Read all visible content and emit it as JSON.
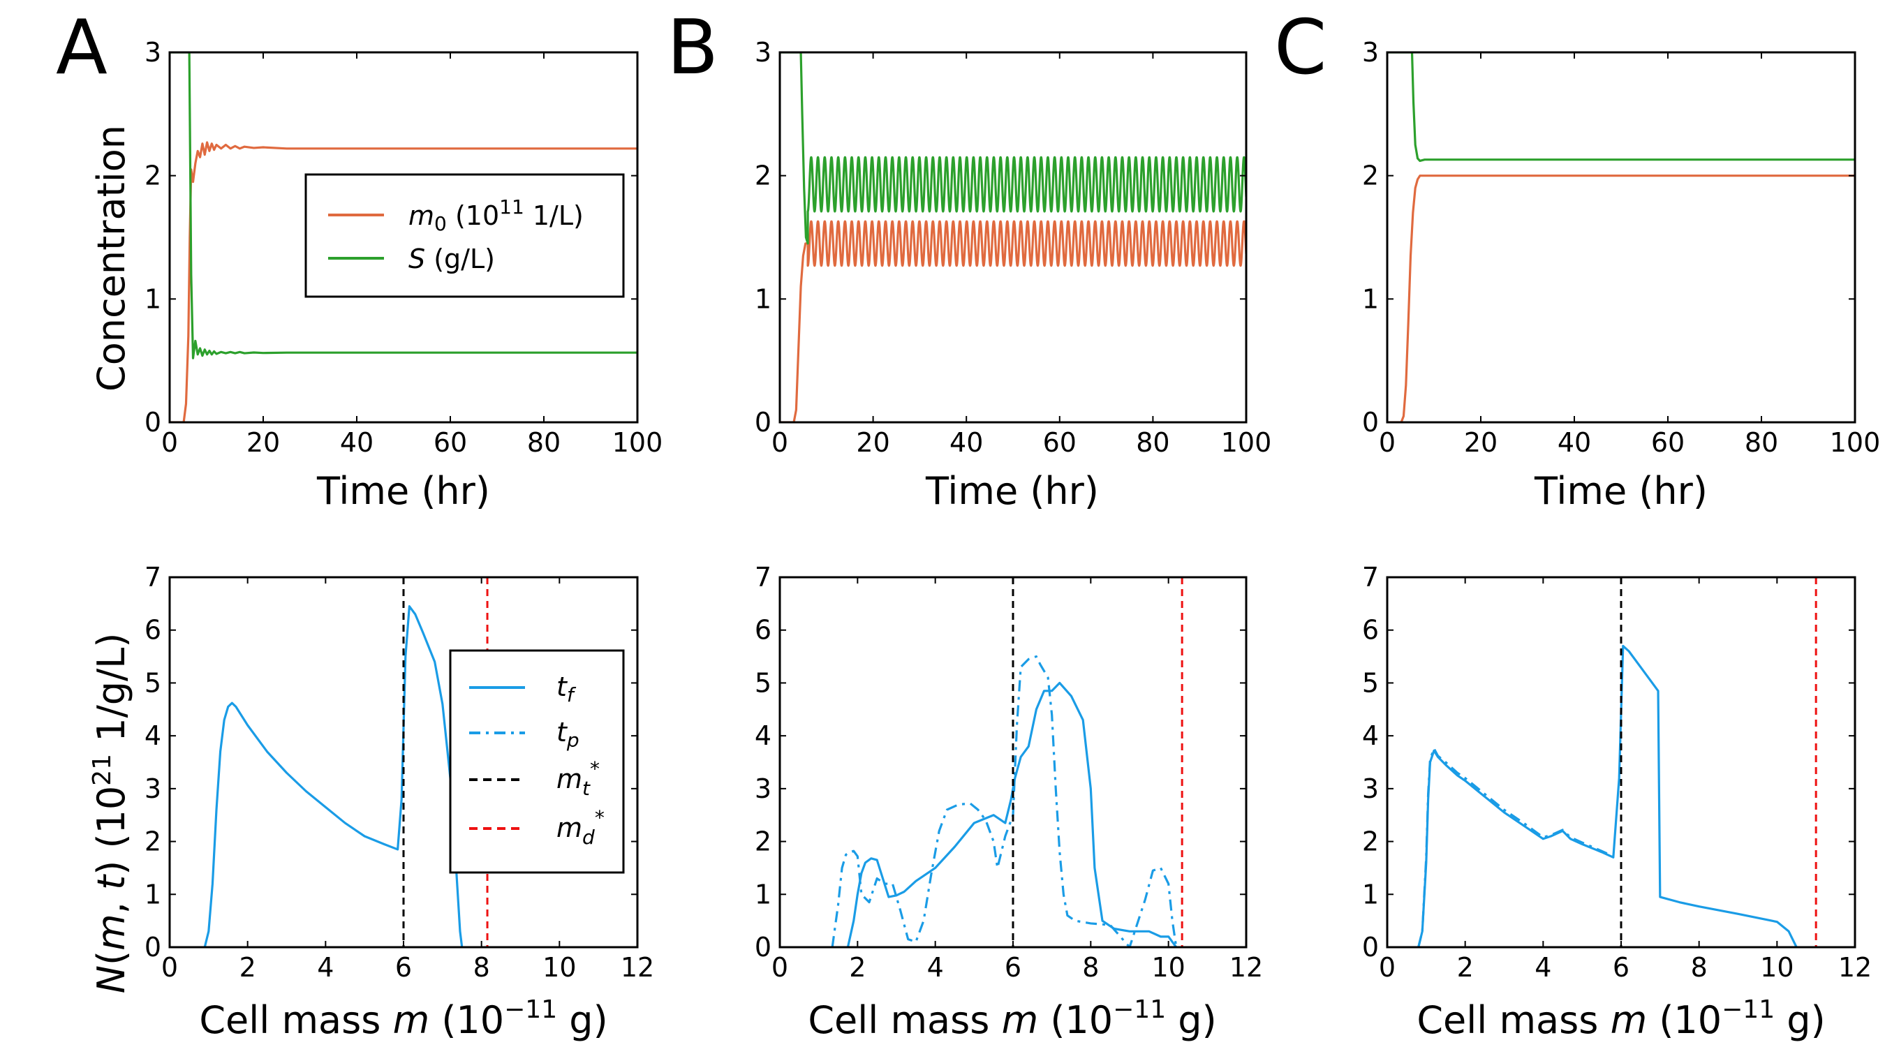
{
  "panel_letters": [
    "A",
    "B",
    "C"
  ],
  "colors": {
    "m0": "#e06a3f",
    "S": "#2ca02c",
    "N": "#1a9ce6",
    "mt": "#000000",
    "md": "#ee1111"
  },
  "top_axes": {
    "ylabel": "Concentration",
    "xlabel": "Time (hr)",
    "xticks": [
      "0",
      "20",
      "40",
      "60",
      "80",
      "100"
    ],
    "yticks": [
      "0",
      "1",
      "2",
      "3"
    ]
  },
  "bottom_axes": {
    "ylabel": "N(m, t) (10^21 1/g/L)",
    "xlabel": "Cell mass m (10^−11 g)",
    "xticks": [
      "0",
      "2",
      "4",
      "6",
      "8",
      "10",
      "12"
    ],
    "yticks": [
      "0",
      "1",
      "2",
      "3",
      "4",
      "5",
      "6",
      "7"
    ]
  },
  "legend_top": {
    "m0": "m0 (10^11 1/L)",
    "S": "S (g/L)"
  },
  "legend_bottom": {
    "tf": "t_f",
    "tp": "t_p",
    "mt": "m_t^*",
    "md": "m_d^*"
  },
  "chart_data": [
    {
      "panel": "A",
      "type": "line",
      "xlabel": "Time (hr)",
      "ylabel": "Concentration",
      "xlim": [
        0,
        100
      ],
      "ylim": [
        0,
        3
      ],
      "series": [
        {
          "name": "m0 (10^11 1/L)",
          "x": [
            0,
            3,
            3.5,
            4,
            4.3,
            4.6,
            5,
            5.5,
            6,
            6.5,
            7,
            7.5,
            8,
            8.5,
            9,
            9.5,
            10,
            11,
            12,
            13,
            14,
            15,
            16,
            18,
            20,
            25,
            30,
            40,
            60,
            80,
            100
          ],
          "y": [
            0,
            0,
            0.15,
            0.7,
            1.5,
            2.05,
            1.95,
            2.1,
            2.2,
            2.15,
            2.26,
            2.17,
            2.27,
            2.2,
            2.26,
            2.21,
            2.25,
            2.22,
            2.25,
            2.22,
            2.24,
            2.22,
            2.235,
            2.225,
            2.23,
            2.22,
            2.22,
            2.22,
            2.22,
            2.22,
            2.22
          ]
        },
        {
          "name": "S (g/L)",
          "x": [
            0,
            4.2,
            4.6,
            5,
            5.5,
            6,
            6.5,
            7,
            7.5,
            8,
            8.5,
            9,
            9.5,
            10,
            11,
            12,
            13,
            14,
            15,
            16,
            18,
            20,
            25,
            30,
            40,
            60,
            80,
            100
          ],
          "y": [
            3,
            3,
            1.2,
            0.52,
            0.66,
            0.55,
            0.6,
            0.54,
            0.59,
            0.55,
            0.58,
            0.55,
            0.575,
            0.555,
            0.57,
            0.56,
            0.57,
            0.56,
            0.57,
            0.56,
            0.566,
            0.562,
            0.565,
            0.565,
            0.565,
            0.565,
            0.565,
            0.565
          ]
        }
      ]
    },
    {
      "panel": "B",
      "type": "line",
      "xlabel": "Time (hr)",
      "ylabel": "Concentration",
      "xlim": [
        0,
        100
      ],
      "ylim": [
        0,
        3
      ],
      "series": [
        {
          "name": "m0 (10^11 1/L)",
          "oscillation": {
            "start": 6,
            "center": 1.45,
            "amplitude": 0.18,
            "period": 1.45
          },
          "rise": [
            [
              0,
              0
            ],
            [
              3,
              0
            ],
            [
              3.5,
              0.1
            ],
            [
              4,
              0.6
            ],
            [
              4.5,
              1.1
            ],
            [
              5,
              1.35
            ],
            [
              5.5,
              1.45
            ],
            [
              6,
              1.45
            ]
          ]
        },
        {
          "name": "S (g/L)",
          "oscillation": {
            "start": 6,
            "center": 1.93,
            "amplitude": 0.22,
            "period": 1.45
          },
          "rise": [
            [
              0,
              3
            ],
            [
              4.5,
              3
            ],
            [
              4.8,
              2.5
            ],
            [
              5.2,
              1.9
            ],
            [
              5.6,
              1.5
            ],
            [
              6,
              1.45
            ]
          ]
        }
      ]
    },
    {
      "panel": "C",
      "type": "line",
      "xlabel": "Time (hr)",
      "ylabel": "Concentration",
      "xlim": [
        0,
        100
      ],
      "ylim": [
        0,
        3
      ],
      "series": [
        {
          "name": "m0 (10^11 1/L)",
          "x": [
            0,
            3,
            3.5,
            4,
            4.5,
            5,
            5.5,
            6,
            6.5,
            7,
            8,
            10,
            20,
            40,
            60,
            80,
            100
          ],
          "y": [
            0,
            0,
            0.05,
            0.3,
            0.8,
            1.35,
            1.7,
            1.9,
            1.97,
            2.0,
            2.0,
            2.0,
            2.0,
            2.0,
            2.0,
            2.0,
            2.0
          ]
        },
        {
          "name": "S (g/L)",
          "x": [
            0,
            5.3,
            5.6,
            6,
            6.5,
            7,
            8,
            10,
            20,
            40,
            60,
            80,
            100
          ],
          "y": [
            3,
            3,
            2.6,
            2.25,
            2.14,
            2.12,
            2.13,
            2.13,
            2.13,
            2.13,
            2.13,
            2.13,
            2.13
          ]
        }
      ]
    },
    {
      "panel": "A",
      "type": "line",
      "xlabel": "Cell mass m (10^−11 g)",
      "ylabel": "N(m, t) (10^21 1/g/L)",
      "xlim": [
        0,
        12
      ],
      "ylim": [
        0,
        7
      ],
      "series": [
        {
          "name": "t_f",
          "style": "solid",
          "x": [
            0.9,
            1.0,
            1.1,
            1.2,
            1.3,
            1.4,
            1.5,
            1.6,
            1.7,
            2.0,
            2.5,
            3,
            3.5,
            4,
            4.5,
            5,
            5.5,
            5.85,
            5.95,
            6.05,
            6.15,
            6.3,
            6.5,
            6.8,
            7.0,
            7.2,
            7.35,
            7.45,
            7.5
          ],
          "y": [
            0,
            0.3,
            1.2,
            2.6,
            3.7,
            4.3,
            4.55,
            4.62,
            4.55,
            4.2,
            3.7,
            3.3,
            2.95,
            2.65,
            2.35,
            2.1,
            1.95,
            1.85,
            2.8,
            5.5,
            6.45,
            6.3,
            5.95,
            5.4,
            4.6,
            3.2,
            1.5,
            0.3,
            0
          ]
        }
      ],
      "markers": {
        "m_t^*": 6.0,
        "m_d^*": 8.15
      }
    },
    {
      "panel": "B",
      "type": "line",
      "xlabel": "Cell mass m (10^−11 g)",
      "ylabel": "N(m, t) (10^21 1/g/L)",
      "xlim": [
        0,
        12
      ],
      "ylim": [
        0,
        7
      ],
      "series": [
        {
          "name": "t_f",
          "style": "solid",
          "x": [
            1.75,
            1.9,
            2.0,
            2.1,
            2.2,
            2.35,
            2.5,
            2.65,
            2.8,
            3.0,
            3.2,
            3.5,
            4.0,
            4.5,
            5.0,
            5.5,
            5.8,
            5.95,
            6.05,
            6.2,
            6.4,
            6.6,
            6.8,
            7.0,
            7.2,
            7.5,
            7.8,
            8.0,
            8.1,
            8.3,
            8.6,
            9.0,
            9.5,
            9.8,
            10.0,
            10.1,
            10.2
          ],
          "y": [
            0,
            0.5,
            1.0,
            1.4,
            1.6,
            1.68,
            1.65,
            1.3,
            0.95,
            0.98,
            1.05,
            1.25,
            1.5,
            1.9,
            2.35,
            2.5,
            2.35,
            2.8,
            3.2,
            3.6,
            3.8,
            4.5,
            4.85,
            4.85,
            5.0,
            4.75,
            4.3,
            3.0,
            1.5,
            0.5,
            0.35,
            0.3,
            0.3,
            0.2,
            0.2,
            0.1,
            0
          ]
        },
        {
          "name": "t_p",
          "style": "dashdot",
          "x": [
            1.35,
            1.5,
            1.6,
            1.7,
            1.8,
            1.9,
            2.0,
            2.1,
            2.3,
            2.5,
            2.7,
            2.9,
            3.1,
            3.3,
            3.5,
            3.7,
            3.9,
            4.1,
            4.3,
            4.6,
            4.9,
            5.1,
            5.3,
            5.5,
            5.6,
            5.8,
            6.0,
            6.1,
            6.2,
            6.4,
            6.6,
            6.7,
            6.9,
            7.0,
            7.1,
            7.2,
            7.3,
            7.4,
            7.6,
            8.0,
            8.5,
            9.0,
            9.4,
            9.6,
            9.8,
            10.0,
            10.1,
            10.2
          ],
          "y": [
            0,
            0.8,
            1.5,
            1.75,
            1.8,
            1.82,
            1.72,
            1.0,
            0.85,
            1.3,
            1.2,
            1.2,
            0.7,
            0.15,
            0.1,
            0.5,
            1.4,
            2.2,
            2.6,
            2.7,
            2.72,
            2.6,
            2.4,
            2.0,
            1.5,
            2.1,
            2.5,
            4.2,
            5.3,
            5.45,
            5.5,
            5.35,
            5.1,
            4.4,
            3.0,
            1.8,
            1.0,
            0.6,
            0.5,
            0.45,
            0.42,
            0.0,
            0.9,
            1.45,
            1.5,
            1.2,
            0.5,
            0
          ]
        }
      ],
      "markers": {
        "m_t^*": 6.0,
        "m_d^*": 10.35
      }
    },
    {
      "panel": "C",
      "type": "line",
      "xlabel": "Cell mass m (10^−11 g)",
      "ylabel": "N(m, t) (10^21 1/g/L)",
      "xlim": [
        0,
        12
      ],
      "ylim": [
        0,
        7
      ],
      "series": [
        {
          "name": "t_f",
          "style": "solid",
          "x": [
            0.8,
            0.9,
            1.0,
            1.05,
            1.1,
            1.2,
            1.3,
            1.5,
            1.8,
            2.0,
            2.5,
            3.0,
            3.5,
            4.0,
            4.2,
            4.5,
            4.7,
            5.0,
            5.5,
            5.8,
            5.95,
            6.05,
            6.2,
            6.5,
            6.8,
            6.95,
            7.0,
            7.5,
            8.0,
            9.0,
            10.0,
            10.3,
            10.5
          ],
          "y": [
            0,
            0.3,
            1.6,
            2.8,
            3.5,
            3.72,
            3.6,
            3.45,
            3.25,
            3.15,
            2.85,
            2.55,
            2.3,
            2.05,
            2.1,
            2.2,
            2.05,
            1.95,
            1.8,
            1.7,
            3.2,
            5.7,
            5.6,
            5.3,
            5.0,
            4.85,
            0.95,
            0.85,
            0.77,
            0.63,
            0.48,
            0.3,
            0
          ]
        },
        {
          "name": "t_p",
          "style": "dashdot",
          "x": [
            0.8,
            0.9,
            1.0,
            1.05,
            1.1,
            1.2,
            1.3,
            1.5,
            1.8,
            2.0,
            2.5,
            3.0,
            3.5,
            4.0,
            4.2,
            4.5,
            4.7,
            5.0,
            5.5,
            5.8
          ],
          "y": [
            0,
            0.3,
            1.7,
            2.9,
            3.55,
            3.76,
            3.62,
            3.5,
            3.3,
            3.2,
            2.9,
            2.6,
            2.35,
            2.08,
            2.12,
            2.22,
            2.08,
            1.98,
            1.82,
            1.72
          ]
        }
      ],
      "markers": {
        "m_t^*": 6.0,
        "m_d^*": 11.0
      }
    }
  ]
}
